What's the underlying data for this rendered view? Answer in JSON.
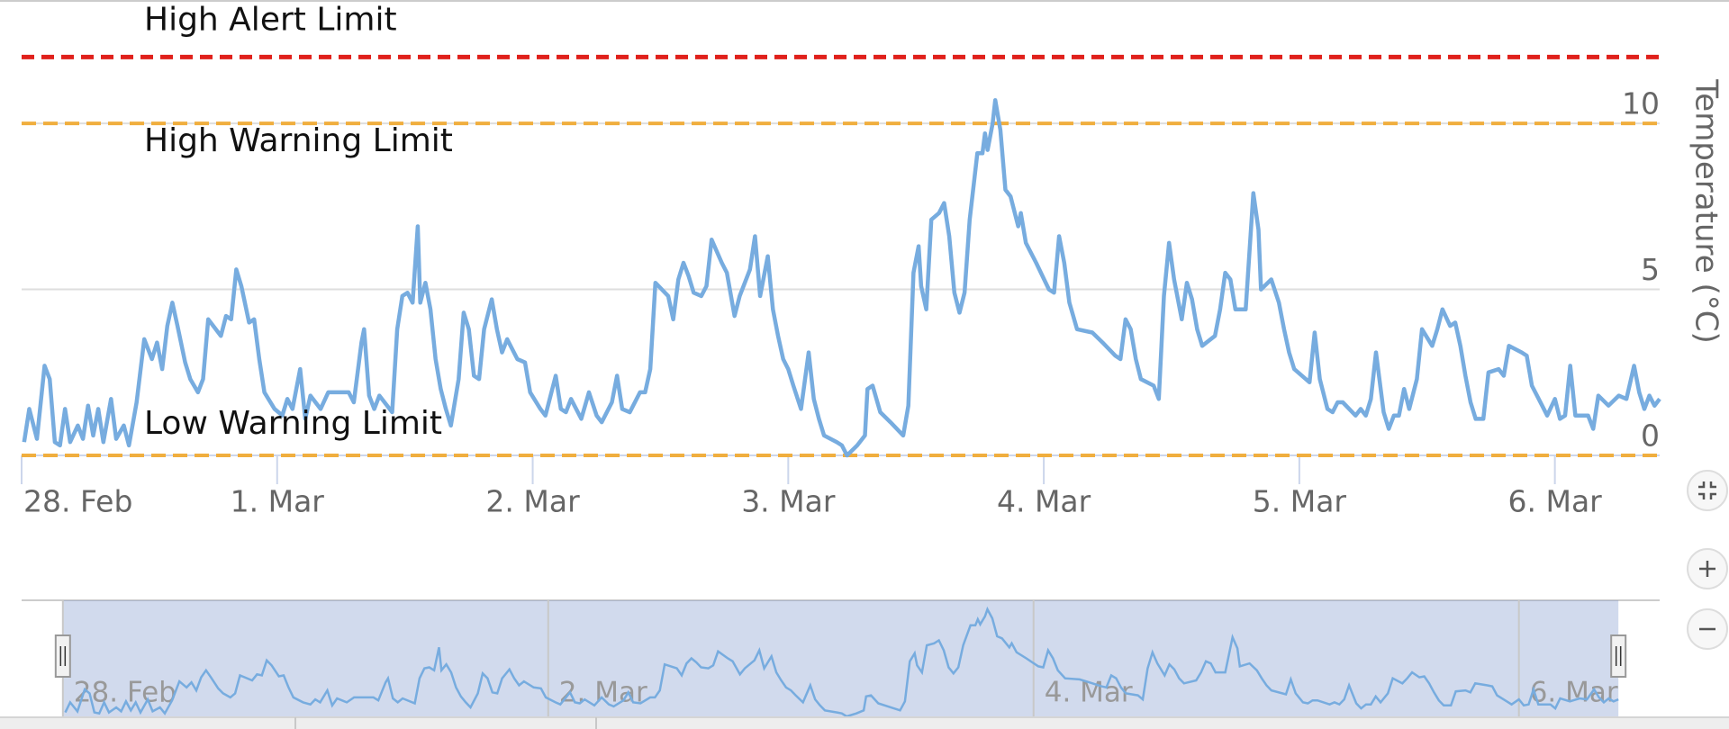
{
  "chart_data": {
    "type": "line",
    "y_axis_title": "Temperature (°C)",
    "color": "#77acdf",
    "x": [
      0.01,
      0.03,
      0.06,
      0.09,
      0.11,
      0.13,
      0.15,
      0.17,
      0.19,
      0.22,
      0.24,
      0.26,
      0.28,
      0.3,
      0.32,
      0.35,
      0.37,
      0.4,
      0.42,
      0.45,
      0.48,
      0.51,
      0.53,
      0.55,
      0.57,
      0.59,
      0.61,
      0.64,
      0.66,
      0.69,
      0.71,
      0.73,
      0.78,
      0.8,
      0.82,
      0.84,
      0.86,
      0.89,
      0.91,
      0.93,
      0.95,
      0.99,
      1.02,
      1.04,
      1.06,
      1.09,
      1.11,
      1.13,
      1.17,
      1.2,
      1.24,
      1.28,
      1.3,
      1.33,
      1.34,
      1.36,
      1.38,
      1.4,
      1.45,
      1.47,
      1.49,
      1.51,
      1.53,
      1.55,
      1.56,
      1.58,
      1.6,
      1.62,
      1.64,
      1.66,
      1.68,
      1.71,
      1.73,
      1.75,
      1.77,
      1.79,
      1.81,
      1.84,
      1.86,
      1.88,
      1.9,
      1.94,
      1.97,
      1.99,
      2.03,
      2.05,
      2.09,
      2.11,
      2.13,
      2.15,
      2.19,
      2.22,
      2.25,
      2.27,
      2.31,
      2.33,
      2.35,
      2.38,
      2.42,
      2.44,
      2.46,
      2.48,
      2.53,
      2.55,
      2.57,
      2.59,
      2.61,
      2.63,
      2.66,
      2.68,
      2.7,
      2.74,
      2.76,
      2.79,
      2.81,
      2.85,
      2.87,
      2.89,
      2.92,
      2.94,
      2.96,
      2.98,
      3.0,
      3.02,
      3.05,
      3.08,
      3.1,
      3.12,
      3.14,
      3.19,
      3.21,
      3.23,
      3.27,
      3.3,
      3.31,
      3.33,
      3.36,
      3.4,
      3.45,
      3.47,
      3.49,
      3.51,
      3.52,
      3.54,
      3.56,
      3.59,
      3.61,
      3.63,
      3.65,
      3.67,
      3.69,
      3.71,
      3.74,
      3.76,
      3.77,
      3.78,
      3.8,
      3.81,
      3.83,
      3.85,
      3.87,
      3.9,
      3.91,
      3.93,
      3.97,
      4.02,
      4.04,
      4.06,
      4.08,
      4.1,
      4.13,
      4.19,
      4.23,
      4.28,
      4.3,
      4.32,
      4.34,
      4.36,
      4.38,
      4.43,
      4.45,
      4.47,
      4.49,
      4.51,
      4.54,
      4.56,
      4.58,
      4.6,
      4.62,
      4.67,
      4.69,
      4.71,
      4.73,
      4.75,
      4.79,
      4.82,
      4.84,
      4.85,
      4.89,
      4.92,
      4.94,
      4.96,
      4.98,
      5.04,
      5.06,
      5.08,
      5.11,
      5.13,
      5.15,
      5.17,
      5.22,
      5.24,
      5.26,
      5.28,
      5.3,
      5.33,
      5.35,
      5.37,
      5.39,
      5.41,
      5.43,
      5.46,
      5.48,
      5.52,
      5.54,
      5.56,
      5.59,
      5.61,
      5.63,
      5.65,
      5.67,
      5.69,
      5.72,
      5.74,
      5.78,
      5.8,
      5.82,
      5.87,
      5.89,
      5.91,
      5.95,
      5.97,
      6.0,
      6.02,
      6.04,
      6.06,
      6.08,
      6.13,
      6.15,
      6.17,
      6.21,
      6.25,
      6.28,
      6.31,
      6.33,
      6.35,
      6.37,
      6.39,
      6.41
    ],
    "values": [
      0.4,
      1.4,
      0.5,
      2.7,
      2.3,
      0.4,
      0.3,
      1.4,
      0.4,
      0.9,
      0.5,
      1.5,
      0.6,
      1.4,
      0.4,
      1.7,
      0.5,
      0.9,
      0.3,
      1.6,
      3.5,
      2.9,
      3.4,
      2.6,
      3.9,
      4.6,
      3.9,
      2.8,
      2.3,
      1.9,
      2.3,
      4.1,
      3.6,
      4.2,
      4.1,
      5.6,
      5.1,
      4.0,
      4.1,
      2.9,
      1.9,
      1.4,
      1.2,
      1.7,
      1.4,
      2.6,
      1.1,
      1.8,
      1.4,
      1.9,
      1.9,
      1.9,
      1.6,
      3.4,
      3.8,
      1.8,
      1.4,
      1.8,
      1.3,
      3.8,
      4.8,
      4.9,
      4.6,
      6.9,
      4.6,
      5.2,
      4.4,
      2.9,
      2.0,
      1.4,
      0.9,
      2.3,
      4.3,
      3.8,
      2.4,
      2.3,
      3.8,
      4.7,
      3.8,
      3.1,
      3.5,
      2.9,
      2.8,
      1.9,
      1.4,
      1.2,
      2.4,
      1.4,
      1.3,
      1.7,
      1.1,
      1.9,
      1.2,
      1.0,
      1.6,
      2.4,
      1.4,
      1.3,
      1.9,
      1.9,
      2.6,
      5.2,
      4.8,
      4.1,
      5.3,
      5.8,
      5.4,
      4.9,
      4.8,
      5.1,
      6.5,
      5.8,
      5.5,
      4.2,
      4.8,
      5.6,
      6.6,
      4.8,
      6.0,
      4.4,
      3.6,
      2.9,
      2.6,
      2.1,
      1.4,
      3.1,
      1.7,
      1.1,
      0.6,
      0.4,
      0.3,
      0.0,
      0.3,
      0.6,
      2.0,
      2.1,
      1.3,
      1.0,
      0.6,
      1.5,
      5.5,
      6.3,
      5.1,
      4.4,
      7.1,
      7.3,
      7.6,
      6.6,
      4.9,
      4.3,
      4.9,
      7.1,
      9.1,
      9.1,
      9.7,
      9.2,
      10.0,
      10.7,
      9.8,
      8.0,
      7.8,
      6.9,
      7.3,
      6.4,
      5.8,
      5.0,
      4.9,
      6.6,
      5.8,
      4.6,
      3.8,
      3.7,
      3.4,
      3.0,
      2.9,
      4.1,
      3.8,
      2.9,
      2.3,
      2.1,
      1.7,
      4.8,
      6.4,
      5.3,
      4.1,
      5.2,
      4.7,
      3.8,
      3.3,
      3.6,
      4.4,
      5.5,
      5.3,
      4.4,
      4.4,
      7.9,
      6.8,
      5.0,
      5.3,
      4.6,
      3.8,
      3.1,
      2.6,
      2.2,
      3.7,
      2.3,
      1.4,
      1.3,
      1.6,
      1.6,
      1.2,
      1.4,
      1.2,
      1.7,
      3.1,
      1.3,
      0.8,
      1.2,
      1.2,
      2.0,
      1.4,
      2.3,
      3.8,
      3.3,
      3.8,
      4.4,
      3.9,
      4.0,
      3.3,
      2.4,
      1.6,
      1.1,
      1.1,
      2.5,
      2.6,
      2.4,
      3.3,
      3.1,
      3.0,
      2.1,
      1.5,
      1.2,
      1.7,
      1.1,
      1.2,
      2.7,
      1.2,
      1.2,
      0.8,
      1.8,
      1.5,
      1.8,
      1.7,
      2.7,
      1.9,
      1.4,
      1.8,
      1.5,
      1.7
    ],
    "xlim": [
      0,
      6.41
    ],
    "xticks": [
      {
        "value": 0,
        "label": "28. Feb"
      },
      {
        "value": 1,
        "label": "1. Mar"
      },
      {
        "value": 2,
        "label": "2. Mar"
      },
      {
        "value": 3,
        "label": "3. Mar"
      },
      {
        "value": 4,
        "label": "4. Mar"
      },
      {
        "value": 5,
        "label": "5. Mar"
      },
      {
        "value": 6,
        "label": "6. Mar"
      }
    ],
    "ylim": [
      0,
      13.5
    ],
    "yticks": [
      0,
      5,
      10
    ],
    "grid": true,
    "plot_lines": [
      {
        "value": 12,
        "label": "High Alert Limit",
        "color": "#e0201b"
      },
      {
        "value": 10,
        "label": "High Warning Limit",
        "color": "#f0ae3e"
      },
      {
        "value": 0,
        "label": "Low Warning Limit",
        "color": "#f0ae3e"
      }
    ],
    "navigator": {
      "xlim": [
        -0.17,
        6.58
      ],
      "ylim": [
        0,
        11.6
      ],
      "xticks": [
        {
          "value": 0,
          "label": "28. Feb"
        },
        {
          "value": 2,
          "label": "2. Mar"
        },
        {
          "value": 4,
          "label": "4. Mar"
        },
        {
          "value": 6,
          "label": "6. Mar"
        }
      ]
    }
  }
}
